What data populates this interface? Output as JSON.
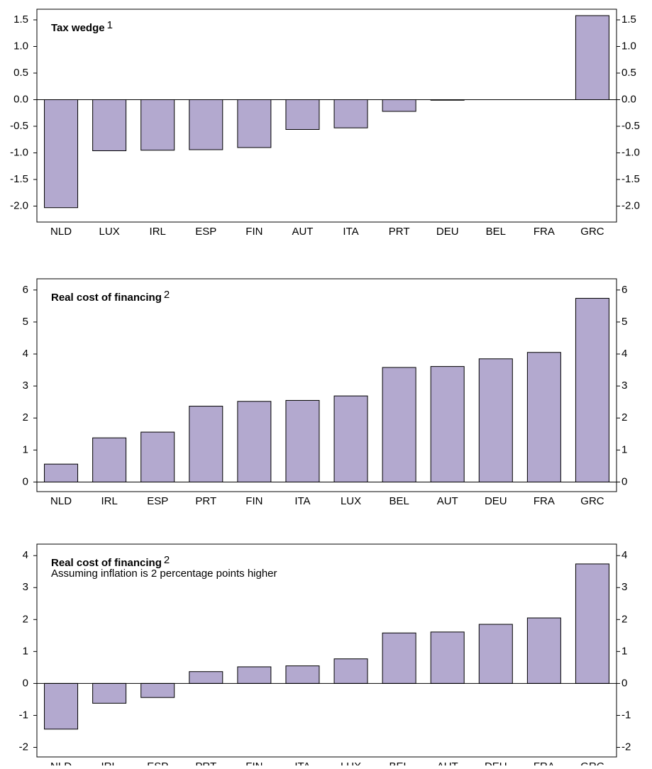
{
  "chart_data": [
    {
      "type": "bar",
      "title": "Tax wedge",
      "title_superscript": "1",
      "color": "#b3a9cf",
      "categories": [
        "NLD",
        "LUX",
        "IRL",
        "ESP",
        "FIN",
        "AUT",
        "ITA",
        "PRT",
        "DEU",
        "BEL",
        "FRA",
        "GRC"
      ],
      "values": [
        -2.03,
        -0.96,
        -0.95,
        -0.94,
        -0.9,
        -0.56,
        -0.53,
        -0.22,
        -0.01,
        0,
        0,
        1.58
      ],
      "ylim": [
        -2.3,
        1.7
      ],
      "yticks": [
        1.5,
        {
          "value": 1,
          "label": "1.0"
        },
        0.5,
        {
          "value": 0,
          "label": "0.0"
        },
        -0.5,
        {
          "value": -1,
          "label": "-1.0"
        },
        -1.5,
        {
          "value": -2,
          "label": "-2.0"
        }
      ]
    },
    {
      "type": "bar",
      "title": "Real cost of financing",
      "title_superscript": "2",
      "color": "#b3a9cf",
      "categories": [
        "NLD",
        "IRL",
        "ESP",
        "PRT",
        "FIN",
        "ITA",
        "LUX",
        "BEL",
        "AUT",
        "DEU",
        "FRA",
        "GRC"
      ],
      "values": [
        0.56,
        1.38,
        1.56,
        2.37,
        2.52,
        2.55,
        2.69,
        3.58,
        3.61,
        3.85,
        4.05,
        5.74
      ],
      "ylim": [
        -0.3,
        6.35
      ],
      "yticks": [
        6,
        5,
        4,
        3,
        2,
        1,
        0
      ]
    },
    {
      "type": "bar",
      "title": "Real cost of financing",
      "title_superscript": "2",
      "subtitle": "Assuming inflation is 2 percentage points higher",
      "color": "#b3a9cf",
      "categories": [
        "NLD",
        "IRL",
        "ESP",
        "PRT",
        "FIN",
        "ITA",
        "LUX",
        "BEL",
        "AUT",
        "DEU",
        "FRA",
        "GRC"
      ],
      "values": [
        -1.43,
        -0.62,
        -0.44,
        0.37,
        0.52,
        0.55,
        0.77,
        1.58,
        1.61,
        1.85,
        2.05,
        3.74
      ],
      "ylim": [
        -2.3,
        4.36
      ],
      "yticks": [
        4,
        3,
        2,
        1,
        0,
        -1,
        -2
      ]
    }
  ]
}
